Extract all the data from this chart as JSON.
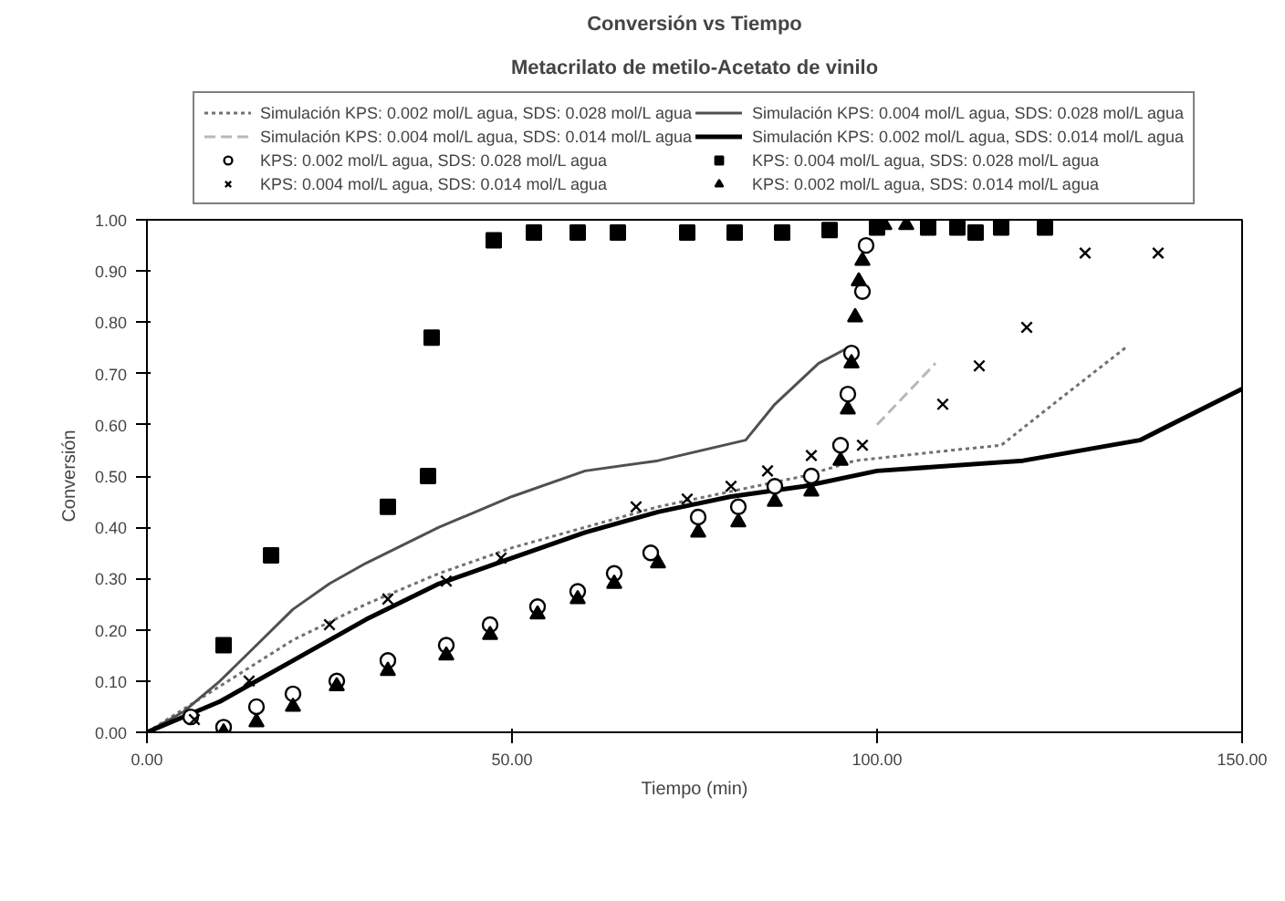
{
  "chart_data": {
    "type": "scatter",
    "title": "Conversión vs Tiempo",
    "subtitle": "Metacrilato de metilo-Acetato de vinilo",
    "xlabel": "Tiempo (min)",
    "ylabel": "Conversión",
    "xlim": [
      0,
      150
    ],
    "ylim": [
      0,
      1
    ],
    "xticks": [
      {
        "value": 0,
        "label": "0.00"
      },
      {
        "value": 50,
        "label": "50.00"
      },
      {
        "value": 100,
        "label": "100.00"
      },
      {
        "value": 150,
        "label": "150.00"
      }
    ],
    "yticks": [
      {
        "value": 0,
        "label": "0.00"
      },
      {
        "value": 0.1,
        "label": "0.10"
      },
      {
        "value": 0.2,
        "label": "0.20"
      },
      {
        "value": 0.3,
        "label": "0.30"
      },
      {
        "value": 0.4,
        "label": "0.40"
      },
      {
        "value": 0.5,
        "label": "0.50"
      },
      {
        "value": 0.6,
        "label": "0.60"
      },
      {
        "value": 0.7,
        "label": "0.70"
      },
      {
        "value": 0.8,
        "label": "0.80"
      },
      {
        "value": 0.9,
        "label": "0.90"
      },
      {
        "value": 1.0,
        "label": "1.00"
      }
    ],
    "grid": false,
    "legend": "top",
    "series": [
      {
        "name": "Simulación KPS: 0.002 mol/L agua, SDS: 0.028 mol/L agua",
        "type": "line",
        "line_style": "dotted",
        "color": "#707070",
        "x": [
          0,
          10,
          20,
          30,
          40,
          50,
          60,
          70,
          80,
          90,
          97,
          110,
          117,
          125,
          134
        ],
        "values": [
          0,
          0.09,
          0.18,
          0.25,
          0.31,
          0.36,
          0.4,
          0.44,
          0.47,
          0.5,
          0.53,
          0.55,
          0.56,
          0.65,
          0.75
        ]
      },
      {
        "name": "Simulación KPS: 0.004 mol/L agua, SDS: 0.028 mol/L agua",
        "type": "line",
        "line_style": "solid",
        "color": "#505050",
        "x": [
          0,
          5,
          10,
          15,
          20,
          25,
          30,
          40,
          50,
          60,
          70,
          82,
          86,
          92,
          96
        ],
        "values": [
          0,
          0.04,
          0.1,
          0.17,
          0.24,
          0.29,
          0.33,
          0.4,
          0.46,
          0.51,
          0.53,
          0.57,
          0.64,
          0.72,
          0.75
        ]
      },
      {
        "name": "Simulación KPS: 0.004 mol/L agua, SDS: 0.014 mol/L agua",
        "type": "line",
        "line_style": "dashed",
        "color": "#b8b8b8",
        "x": [
          100,
          104,
          108
        ],
        "values": [
          0.6,
          0.66,
          0.72
        ]
      },
      {
        "name": "Simulación KPS: 0.002 mol/L agua, SDS: 0.014 mol/L agua",
        "type": "line",
        "line_style": "solid",
        "color": "#000000",
        "x": [
          0,
          10,
          20,
          30,
          40,
          50,
          60,
          70,
          80,
          90,
          100,
          120,
          136,
          150
        ],
        "values": [
          0,
          0.06,
          0.14,
          0.22,
          0.29,
          0.34,
          0.39,
          0.43,
          0.46,
          0.48,
          0.51,
          0.53,
          0.57,
          0.67
        ]
      },
      {
        "name": "KPS: 0.002 mol/L agua, SDS: 0.028 mol/L agua",
        "marker": "circle",
        "color": "#000000",
        "x": [
          6,
          10.5,
          15,
          20,
          26,
          33,
          41,
          47,
          53.5,
          59,
          64,
          69,
          75.5,
          81,
          86,
          91,
          95,
          96,
          96.5,
          98,
          98.5
        ],
        "values": [
          0.03,
          0.01,
          0.05,
          0.075,
          0.1,
          0.14,
          0.17,
          0.21,
          0.245,
          0.275,
          0.31,
          0.35,
          0.42,
          0.44,
          0.48,
          0.5,
          0.56,
          0.66,
          0.74,
          0.86,
          0.95
        ]
      },
      {
        "name": "KPS: 0.004 mol/L agua, SDS: 0.028 mol/L agua",
        "marker": "square",
        "color": "#000000",
        "x": [
          10.5,
          17,
          33,
          38.5,
          39,
          47.5,
          53,
          59,
          64.5,
          74,
          80.5,
          87,
          93.5,
          100,
          107,
          111,
          113.5,
          117,
          123
        ],
        "values": [
          0.17,
          0.345,
          0.44,
          0.5,
          0.77,
          0.96,
          0.975,
          0.975,
          0.975,
          0.975,
          0.975,
          0.975,
          0.98,
          0.985,
          0.985,
          0.985,
          0.975,
          0.985,
          0.985
        ]
      },
      {
        "name": "KPS: 0.004 mol/L agua, SDS: 0.014 mol/L agua",
        "marker": "cross",
        "color": "#000000",
        "x": [
          6.5,
          14,
          25,
          33,
          41,
          48.5,
          67,
          74,
          80,
          85,
          91,
          98,
          109,
          114,
          120.5,
          128.5,
          138.5
        ],
        "values": [
          0.025,
          0.1,
          0.21,
          0.26,
          0.295,
          0.34,
          0.44,
          0.455,
          0.48,
          0.51,
          0.54,
          0.56,
          0.64,
          0.715,
          0.79,
          0.935,
          0.935
        ]
      },
      {
        "name": "KPS: 0.002 mol/L agua, SDS: 0.014 mol/L agua",
        "marker": "triangle",
        "color": "#000000",
        "x": [
          10.5,
          15,
          20,
          26,
          33,
          41,
          47,
          53.5,
          59,
          64,
          70,
          75.5,
          81,
          86,
          91,
          95,
          96,
          96.5,
          97,
          97.5,
          98,
          101,
          104
        ],
        "values": [
          0.0,
          0.02,
          0.05,
          0.09,
          0.12,
          0.15,
          0.19,
          0.23,
          0.26,
          0.29,
          0.33,
          0.39,
          0.41,
          0.45,
          0.47,
          0.53,
          0.63,
          0.72,
          0.81,
          0.88,
          0.92,
          0.99,
          0.99
        ]
      }
    ]
  }
}
